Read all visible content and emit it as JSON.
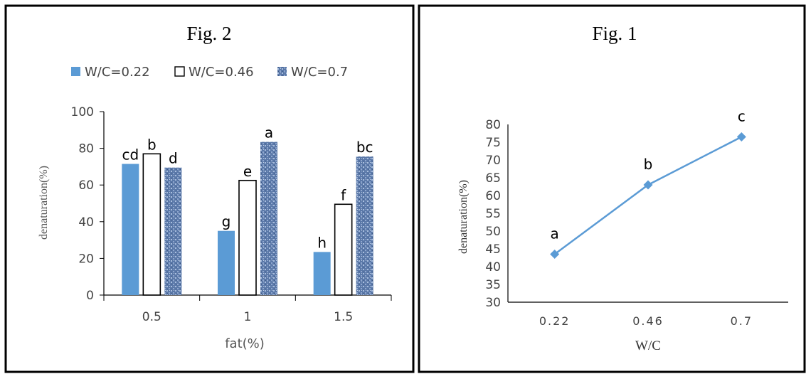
{
  "panels": {
    "left": {
      "chart_data": {
        "type": "bar",
        "title": "Fig. 2",
        "xlabel": "fat(%)",
        "ylabel": "denaturation(%)",
        "categories": [
          "0.5",
          "1",
          "1.5"
        ],
        "ylim": [
          0,
          100
        ],
        "yticks": [
          "0",
          "20",
          "40",
          "60",
          "80",
          "100"
        ],
        "legend_position": "top",
        "series": [
          {
            "name": "W/C=0.22",
            "values": [
              71.5,
              35,
              23.5
            ],
            "labels": [
              "cd",
              "g",
              "h"
            ],
            "style": "solid",
            "color": "#5b9bd5"
          },
          {
            "name": "W/C=0.46",
            "values": [
              77,
              62.5,
              49.5
            ],
            "labels": [
              "b",
              "e",
              "f"
            ],
            "style": "outline",
            "color": "#000000"
          },
          {
            "name": "W/C=0.7",
            "values": [
              69.5,
              83.5,
              75.5
            ],
            "labels": [
              "d",
              "a",
              "bc"
            ],
            "style": "textured",
            "color": "#5a78a8"
          }
        ],
        "grid": false
      }
    },
    "right": {
      "chart_data": {
        "type": "line",
        "title": "Fig. 1",
        "xlabel": "W/C",
        "ylabel": "denaturation(%)",
        "categories": [
          "0.22",
          "0.46",
          "0.7"
        ],
        "ylim": [
          30,
          80
        ],
        "yticks": [
          "30",
          "35",
          "40",
          "45",
          "50",
          "55",
          "60",
          "65",
          "70",
          "75",
          "80"
        ],
        "series": [
          {
            "values": [
              43.5,
              63,
              76.5
            ],
            "labels": [
              "a",
              "b",
              "c"
            ],
            "color": "#5b9bd5",
            "marker": "diamond"
          }
        ],
        "grid": false
      }
    }
  }
}
